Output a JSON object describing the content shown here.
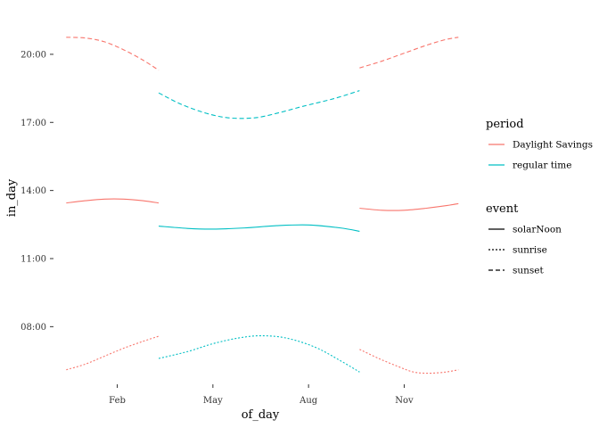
{
  "chart_data": {
    "type": "line",
    "xlabel": "of_day",
    "ylabel": "in_day",
    "x_ticks": [
      "Feb",
      "May",
      "Aug",
      "Nov"
    ],
    "y_ticks": [
      "08:00",
      "11:00",
      "14:00",
      "17:00",
      "20:00"
    ],
    "xlim": [
      0,
      13
    ],
    "ylim": [
      5.5,
      22
    ],
    "grid": false,
    "legend_position": "right",
    "colors": {
      "Daylight Savings": "#F8766D",
      "regular time": "#00BFC4"
    },
    "legends": [
      {
        "title": "period",
        "items": [
          {
            "label": "Daylight Savings",
            "key": "Daylight Savings"
          },
          {
            "label": "regular time",
            "key": "regular time"
          }
        ]
      },
      {
        "title": "event",
        "items": [
          {
            "label": "solarNoon",
            "dash": "solid"
          },
          {
            "label": "sunrise",
            "dash": "dotted"
          },
          {
            "label": "sunset",
            "dash": "dashed"
          }
        ]
      }
    ],
    "series": [
      {
        "period": "Daylight Savings",
        "event": "sunset",
        "x": [
          0.4,
          1.0,
          1.6,
          2.2,
          2.8,
          3.3
        ],
        "y": [
          20.75,
          20.72,
          20.55,
          20.2,
          19.75,
          19.3
        ]
      },
      {
        "period": "Daylight Savings",
        "event": "solarNoon",
        "x": [
          0.4,
          1.0,
          1.6,
          2.2,
          2.8,
          3.3
        ],
        "y": [
          13.45,
          13.55,
          13.62,
          13.62,
          13.55,
          13.45
        ]
      },
      {
        "period": "Daylight Savings",
        "event": "sunrise",
        "x": [
          0.4,
          1.0,
          1.6,
          2.2,
          2.8,
          3.3
        ],
        "y": [
          6.1,
          6.35,
          6.7,
          7.05,
          7.35,
          7.58
        ]
      },
      {
        "period": "regular time",
        "event": "sunset",
        "x": [
          3.3,
          4.0,
          4.8,
          5.5,
          6.3,
          7.0,
          7.8,
          8.8,
          9.6
        ],
        "y": [
          18.3,
          17.8,
          17.4,
          17.2,
          17.2,
          17.4,
          17.7,
          18.05,
          18.4
        ]
      },
      {
        "period": "regular time",
        "event": "solarNoon",
        "x": [
          3.3,
          4.2,
          5.0,
          6.0,
          7.0,
          8.0,
          9.0,
          9.6
        ],
        "y": [
          12.43,
          12.33,
          12.3,
          12.35,
          12.45,
          12.48,
          12.35,
          12.2
        ]
      },
      {
        "period": "regular time",
        "event": "sunrise",
        "x": [
          3.3,
          4.2,
          5.0,
          5.8,
          6.5,
          7.3,
          8.2,
          9.0,
          9.6
        ],
        "y": [
          6.6,
          6.9,
          7.25,
          7.5,
          7.6,
          7.5,
          7.1,
          6.5,
          6.0
        ]
      },
      {
        "period": "Daylight Savings",
        "event": "sunset",
        "x": [
          9.6,
          10.3,
          11.0,
          11.7,
          12.3,
          12.7
        ],
        "y": [
          19.4,
          19.7,
          20.05,
          20.4,
          20.65,
          20.75
        ]
      },
      {
        "period": "Daylight Savings",
        "event": "solarNoon",
        "x": [
          9.6,
          10.3,
          11.0,
          11.7,
          12.3,
          12.7
        ],
        "y": [
          13.22,
          13.13,
          13.13,
          13.22,
          13.33,
          13.42
        ]
      },
      {
        "period": "Daylight Savings",
        "event": "sunrise",
        "x": [
          9.6,
          10.2,
          10.8,
          11.3,
          11.8,
          12.3,
          12.7
        ],
        "y": [
          7.0,
          6.6,
          6.25,
          6.0,
          5.95,
          6.0,
          6.1
        ]
      }
    ]
  }
}
